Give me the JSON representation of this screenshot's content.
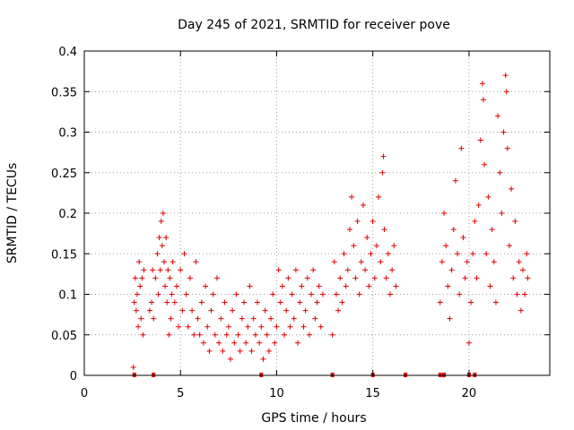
{
  "chart_data": {
    "type": "scatter",
    "title": "Day 245 of 2021, SRMTID for receiver pove",
    "xlabel": "GPS time / hours",
    "ylabel": "SRMTID / TECUs",
    "xlim": [
      0,
      24.2
    ],
    "ylim": [
      0,
      0.4
    ],
    "x_ticks": [
      0,
      5,
      10,
      15,
      20
    ],
    "x_tick_labels": [
      "0",
      "5",
      "10",
      "15",
      "20"
    ],
    "y_ticks": [
      0,
      0.05,
      0.1,
      0.15,
      0.2,
      0.25,
      0.3,
      0.35,
      0.4
    ],
    "y_tick_labels": [
      "0",
      "0.05",
      "0.1",
      "0.15",
      "0.2",
      "0.25",
      "0.3",
      "0.35",
      "0.4"
    ],
    "grid": true,
    "marker": "+",
    "color": "#e00000",
    "series": [
      {
        "name": "SRMTID",
        "points": [
          [
            2.55,
            0.01
          ],
          [
            2.6,
            0.09
          ],
          [
            2.65,
            0.12
          ],
          [
            2.7,
            0.08
          ],
          [
            2.75,
            0.1
          ],
          [
            2.8,
            0.06
          ],
          [
            2.85,
            0.14
          ],
          [
            2.9,
            0.11
          ],
          [
            2.95,
            0.07
          ],
          [
            3.0,
            0.12
          ],
          [
            3.05,
            0.05
          ],
          [
            3.1,
            0.13
          ],
          [
            3.4,
            0.08
          ],
          [
            3.5,
            0.09
          ],
          [
            3.55,
            0.13
          ],
          [
            3.6,
            0.07
          ],
          [
            3.7,
            0.12
          ],
          [
            3.8,
            0.15
          ],
          [
            3.85,
            0.1
          ],
          [
            3.9,
            0.17
          ],
          [
            3.95,
            0.13
          ],
          [
            4.0,
            0.19
          ],
          [
            4.05,
            0.16
          ],
          [
            4.1,
            0.2
          ],
          [
            4.15,
            0.14
          ],
          [
            4.2,
            0.11
          ],
          [
            4.25,
            0.17
          ],
          [
            4.3,
            0.09
          ],
          [
            4.35,
            0.13
          ],
          [
            4.4,
            0.05
          ],
          [
            4.45,
            0.12
          ],
          [
            4.5,
            0.07
          ],
          [
            4.55,
            0.1
          ],
          [
            4.6,
            0.14
          ],
          [
            4.7,
            0.09
          ],
          [
            4.8,
            0.11
          ],
          [
            4.9,
            0.06
          ],
          [
            5.0,
            0.13
          ],
          [
            5.1,
            0.08
          ],
          [
            5.2,
            0.15
          ],
          [
            5.3,
            0.1
          ],
          [
            5.4,
            0.06
          ],
          [
            5.5,
            0.12
          ],
          [
            5.6,
            0.08
          ],
          [
            5.7,
            0.05
          ],
          [
            5.8,
            0.14
          ],
          [
            5.9,
            0.07
          ],
          [
            6.0,
            0.05
          ],
          [
            6.1,
            0.09
          ],
          [
            6.2,
            0.04
          ],
          [
            6.3,
            0.11
          ],
          [
            6.4,
            0.06
          ],
          [
            6.5,
            0.03
          ],
          [
            6.6,
            0.08
          ],
          [
            6.7,
            0.1
          ],
          [
            6.8,
            0.05
          ],
          [
            6.9,
            0.12
          ],
          [
            7.0,
            0.04
          ],
          [
            7.1,
            0.07
          ],
          [
            7.2,
            0.03
          ],
          [
            7.3,
            0.09
          ],
          [
            7.4,
            0.05
          ],
          [
            7.5,
            0.06
          ],
          [
            7.6,
            0.02
          ],
          [
            7.7,
            0.08
          ],
          [
            7.8,
            0.04
          ],
          [
            7.9,
            0.1
          ],
          [
            8.0,
            0.05
          ],
          [
            8.1,
            0.03
          ],
          [
            8.2,
            0.07
          ],
          [
            8.3,
            0.09
          ],
          [
            8.4,
            0.04
          ],
          [
            8.5,
            0.06
          ],
          [
            8.6,
            0.11
          ],
          [
            8.7,
            0.03
          ],
          [
            8.8,
            0.07
          ],
          [
            8.9,
            0.05
          ],
          [
            9.0,
            0.09
          ],
          [
            9.1,
            0.04
          ],
          [
            9.2,
            0.06
          ],
          [
            9.3,
            0.02
          ],
          [
            9.4,
            0.08
          ],
          [
            9.5,
            0.05
          ],
          [
            9.6,
            0.03
          ],
          [
            9.7,
            0.07
          ],
          [
            9.8,
            0.1
          ],
          [
            9.9,
            0.04
          ],
          [
            10.0,
            0.06
          ],
          [
            10.1,
            0.13
          ],
          [
            10.2,
            0.09
          ],
          [
            10.3,
            0.11
          ],
          [
            10.4,
            0.05
          ],
          [
            10.5,
            0.08
          ],
          [
            10.6,
            0.12
          ],
          [
            10.7,
            0.06
          ],
          [
            10.8,
            0.1
          ],
          [
            10.9,
            0.07
          ],
          [
            11.0,
            0.13
          ],
          [
            11.1,
            0.04
          ],
          [
            11.2,
            0.09
          ],
          [
            11.3,
            0.11
          ],
          [
            11.4,
            0.06
          ],
          [
            11.5,
            0.08
          ],
          [
            11.6,
            0.12
          ],
          [
            11.7,
            0.05
          ],
          [
            11.8,
            0.1
          ],
          [
            11.9,
            0.13
          ],
          [
            12.0,
            0.07
          ],
          [
            12.1,
            0.09
          ],
          [
            12.2,
            0.11
          ],
          [
            12.3,
            0.06
          ],
          [
            12.4,
            0.1
          ],
          [
            12.9,
            0.05
          ],
          [
            13.0,
            0.14
          ],
          [
            13.1,
            0.1
          ],
          [
            13.2,
            0.08
          ],
          [
            13.3,
            0.12
          ],
          [
            13.4,
            0.09
          ],
          [
            13.5,
            0.15
          ],
          [
            13.6,
            0.11
          ],
          [
            13.7,
            0.13
          ],
          [
            13.8,
            0.18
          ],
          [
            13.9,
            0.22
          ],
          [
            14.0,
            0.16
          ],
          [
            14.1,
            0.12
          ],
          [
            14.2,
            0.19
          ],
          [
            14.3,
            0.1
          ],
          [
            14.4,
            0.14
          ],
          [
            14.5,
            0.21
          ],
          [
            14.6,
            0.13
          ],
          [
            14.7,
            0.17
          ],
          [
            14.8,
            0.11
          ],
          [
            14.9,
            0.15
          ],
          [
            15.0,
            0.19
          ],
          [
            15.1,
            0.12
          ],
          [
            15.2,
            0.16
          ],
          [
            15.3,
            0.22
          ],
          [
            15.4,
            0.14
          ],
          [
            15.5,
            0.25
          ],
          [
            15.55,
            0.27
          ],
          [
            15.6,
            0.18
          ],
          [
            15.7,
            0.12
          ],
          [
            15.8,
            0.15
          ],
          [
            15.9,
            0.1
          ],
          [
            16.0,
            0.13
          ],
          [
            16.1,
            0.16
          ],
          [
            16.2,
            0.11
          ],
          [
            18.5,
            0.09
          ],
          [
            18.6,
            0.14
          ],
          [
            18.7,
            0.2
          ],
          [
            18.8,
            0.16
          ],
          [
            18.9,
            0.11
          ],
          [
            19.0,
            0.07
          ],
          [
            19.1,
            0.13
          ],
          [
            19.2,
            0.18
          ],
          [
            19.3,
            0.24
          ],
          [
            19.4,
            0.15
          ],
          [
            19.5,
            0.1
          ],
          [
            19.6,
            0.28
          ],
          [
            19.7,
            0.17
          ],
          [
            19.8,
            0.12
          ],
          [
            19.9,
            0.14
          ],
          [
            20.0,
            0.04
          ],
          [
            20.1,
            0.09
          ],
          [
            20.2,
            0.15
          ],
          [
            20.3,
            0.19
          ],
          [
            20.4,
            0.12
          ],
          [
            20.5,
            0.21
          ],
          [
            20.6,
            0.29
          ],
          [
            20.7,
            0.36
          ],
          [
            20.75,
            0.34
          ],
          [
            20.8,
            0.26
          ],
          [
            20.9,
            0.15
          ],
          [
            21.0,
            0.22
          ],
          [
            21.1,
            0.11
          ],
          [
            21.2,
            0.18
          ],
          [
            21.3,
            0.14
          ],
          [
            21.4,
            0.09
          ],
          [
            21.5,
            0.32
          ],
          [
            21.6,
            0.25
          ],
          [
            21.7,
            0.2
          ],
          [
            21.8,
            0.3
          ],
          [
            21.9,
            0.37
          ],
          [
            21.95,
            0.35
          ],
          [
            22.0,
            0.28
          ],
          [
            22.1,
            0.16
          ],
          [
            22.2,
            0.23
          ],
          [
            22.3,
            0.12
          ],
          [
            22.4,
            0.19
          ],
          [
            22.5,
            0.1
          ],
          [
            22.6,
            0.14
          ],
          [
            22.7,
            0.08
          ],
          [
            22.8,
            0.13
          ],
          [
            22.9,
            0.1
          ],
          [
            23.0,
            0.15
          ],
          [
            23.05,
            0.12
          ]
        ]
      }
    ],
    "baseline_markers_x": [
      2.6,
      3.6,
      9.2,
      12.9,
      15.0,
      16.7,
      18.5,
      18.7,
      20.0,
      20.3
    ]
  }
}
